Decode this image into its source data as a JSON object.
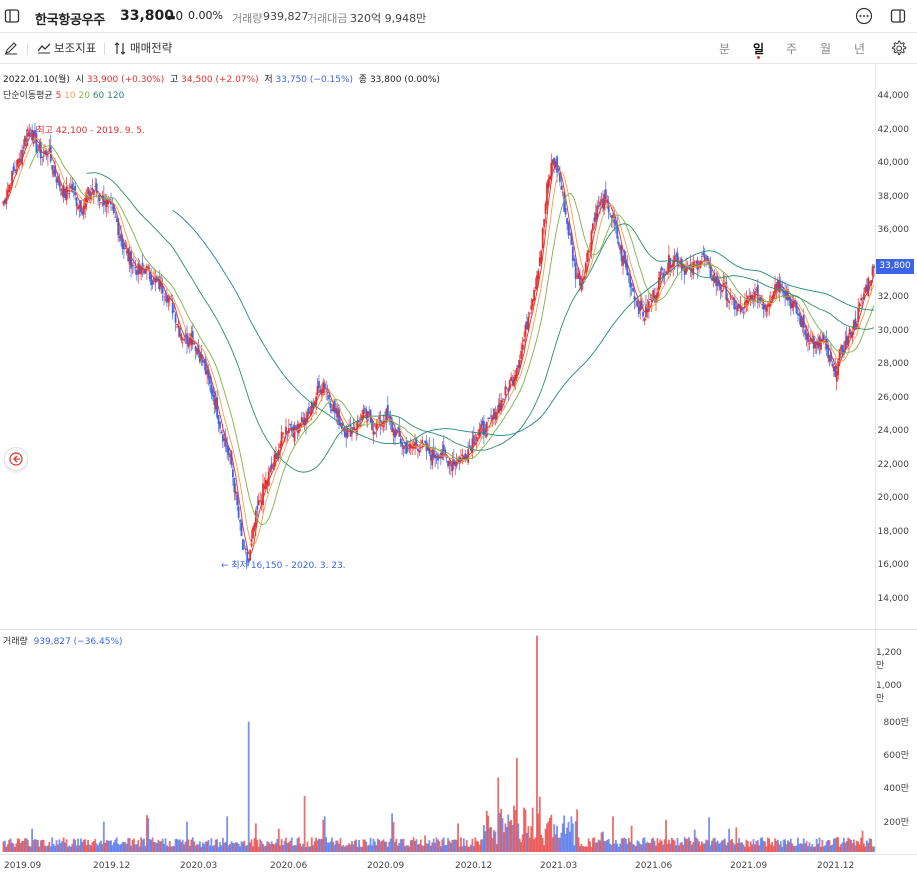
{
  "header": {
    "stock_name": "한국항공우주",
    "price": "33,800",
    "change": "0",
    "change_pct": "0.00%",
    "volume_label": "거래량",
    "volume": "939,827",
    "amount_label": "거래대금",
    "amount": "320억 9,948만",
    "icons": [
      "sidebar-toggle-icon",
      "more-icon",
      "panel-icon"
    ]
  },
  "toolbar": {
    "draw_icon": "pencil-icon",
    "indicators_label": "보조지표",
    "strategy_label": "매매전략",
    "periods": [
      "분",
      "일",
      "주",
      "월",
      "년"
    ],
    "active_period": "일",
    "settings_icon": "gear-icon"
  },
  "ohlc": {
    "date": "2022.01.10(월)",
    "open_label": "시",
    "open": "33,900 (+0.30%)",
    "high_label": "고",
    "high": "34,500 (+2.07%)",
    "low_label": "저",
    "low": "33,750 (−0.15%)",
    "close_label": "종",
    "close": "33,800 (0.00%)"
  },
  "ma": {
    "label": "단순이동평균",
    "periods": [
      "5",
      "10",
      "20",
      "60",
      "120"
    ],
    "colors": [
      "#e3302f",
      "#f2a14a",
      "#7bb34a",
      "#2e8c6a",
      "#1f8a84"
    ]
  },
  "annotations": {
    "high": "← 최고 42,100 - 2019. 9. 5.",
    "low": "← 최저 16,150 - 2020. 3. 23."
  },
  "volume_panel": {
    "label": "거래량",
    "value": "939,827 (−36.45%)"
  },
  "price_tag": "33,800",
  "colors": {
    "up": "#e3302f",
    "down": "#3e64e6"
  },
  "chart_data": {
    "type": "line",
    "title": "",
    "y_ticks": [
      "44,000",
      "42,000",
      "40,000",
      "38,000",
      "36,000",
      "34,000",
      "32,000",
      "30,000",
      "28,000",
      "26,000",
      "24,000",
      "22,000",
      "20,000",
      "18,000",
      "16,000",
      "14,000"
    ],
    "volume_ticks": [
      "1,200만",
      "1,000만",
      "800만",
      "600만",
      "400만",
      "200만"
    ],
    "x_ticks": [
      "2019.09",
      "2019.12",
      "2020.03",
      "2020.06",
      "2020.09",
      "2020.12",
      "2021.03",
      "2021.06",
      "2021.09",
      "2021.12"
    ],
    "ylim": [
      13000,
      45000
    ],
    "volume_ylim": [
      0,
      12500000
    ],
    "series": [
      {
        "values": [
          37.5,
          38.5,
          39.5,
          40.2,
          41.5,
          42.1,
          41.0,
          40.5,
          40.8,
          39.6,
          38.8,
          38.2,
          38.6,
          37.8,
          37.4,
          38.2,
          38.5,
          38.0,
          37.8,
          37.2,
          36.5,
          35.2,
          34.4,
          34.0,
          33.5,
          33.8,
          33.2,
          32.9,
          32.6,
          32.0,
          31.2,
          30.1,
          29.5,
          29.8,
          29.0,
          28.2,
          27.0,
          26.0,
          24.5,
          23.2,
          22.0,
          19.5,
          17.0,
          16.2,
          18.5,
          20.0,
          21.0,
          21.8,
          22.8,
          23.8,
          24.5,
          24.0,
          24.8,
          24.6,
          25.5,
          26.4,
          27.0,
          26.1,
          25.2,
          24.6,
          24.0,
          24.2,
          24.5,
          25.0,
          24.8,
          24.2,
          24.6,
          25.0,
          24.2,
          23.8,
          23.1,
          23.0,
          23.3,
          23.2,
          22.9,
          22.6,
          22.7,
          22.5,
          22.3,
          22.2,
          22.4,
          22.8,
          23.5,
          24.0,
          24.1,
          24.5,
          25.2,
          25.8,
          26.5,
          27.3,
          28.2,
          29.5,
          31.5,
          33.0,
          35.0,
          38.5,
          40.3,
          39.5,
          37.5,
          35.5,
          33.5,
          33.0,
          34.5,
          36.5,
          37.5,
          37.8,
          37.2,
          36.0,
          34.5,
          33.5,
          32.5,
          31.5,
          31.0,
          31.8,
          32.5,
          33.5,
          34.0,
          34.5,
          34.2,
          33.8,
          33.6,
          34.0,
          34.5,
          33.8,
          33.2,
          32.8,
          32.5,
          31.8,
          31.5,
          31.2,
          31.8,
          32.2,
          32.0,
          31.5,
          32.2,
          33.0,
          32.8,
          32.0,
          31.5,
          30.8,
          30.0,
          29.5,
          29.0,
          29.5,
          28.5,
          27.5,
          28.5,
          29.2,
          30.0,
          30.8,
          32.0,
          33.0,
          33.8
        ]
      }
    ]
  }
}
